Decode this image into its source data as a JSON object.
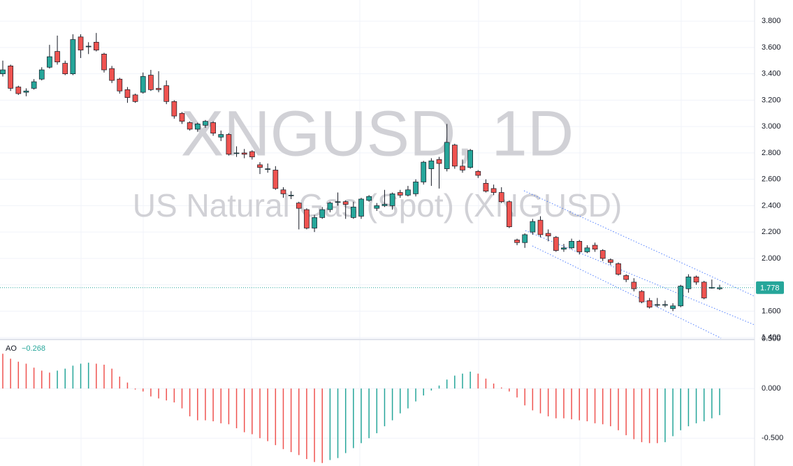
{
  "chart_data": [
    {
      "type": "candlestick",
      "title": "XNGUSD, 1D",
      "subtitle": "US Natural Gas (Spot) (XNGUSD)",
      "open": [
        3.4,
        3.46,
        3.3,
        3.26,
        3.29,
        3.36,
        3.45,
        3.57,
        3.48,
        3.4,
        3.68,
        3.61,
        3.64,
        3.55,
        3.44,
        3.36,
        3.28,
        3.24,
        3.26,
        3.39,
        3.29,
        3.31,
        3.19,
        3.1,
        3.03,
        2.98,
        3.01,
        3.03,
        2.92,
        2.94,
        2.8,
        2.8,
        2.81,
        2.71,
        2.68,
        2.67,
        2.52,
        2.48,
        2.42,
        2.37,
        2.23,
        2.31,
        2.37,
        2.43,
        2.43,
        2.31,
        2.32,
        2.44,
        2.38,
        2.4,
        2.4,
        2.5,
        2.48,
        2.49,
        2.58,
        2.68,
        2.75,
        2.68,
        2.86,
        2.7,
        2.69,
        2.66,
        2.57,
        2.53,
        2.5,
        2.43,
        2.14,
        2.12,
        2.2,
        2.29,
        2.19,
        2.16,
        2.07,
        2.08,
        2.13,
        2.05,
        2.1,
        2.06,
        1.99,
        1.96,
        1.87,
        1.82,
        1.75,
        1.68,
        1.65,
        1.65,
        1.62,
        1.64,
        1.77,
        1.86,
        1.82,
        1.78,
        1.77
      ],
      "high": [
        3.5,
        3.47,
        3.31,
        3.29,
        3.36,
        3.45,
        3.62,
        3.69,
        3.5,
        3.7,
        3.7,
        3.64,
        3.71,
        3.56,
        3.46,
        3.37,
        3.3,
        3.25,
        3.41,
        3.43,
        3.42,
        3.35,
        3.2,
        3.11,
        3.04,
        3.03,
        3.05,
        3.04,
        2.97,
        2.95,
        2.85,
        2.83,
        2.82,
        2.73,
        2.72,
        2.7,
        2.54,
        2.51,
        2.43,
        2.38,
        2.33,
        2.39,
        2.43,
        2.5,
        2.44,
        2.43,
        2.46,
        2.48,
        2.42,
        2.52,
        2.5,
        2.52,
        2.55,
        2.6,
        2.74,
        2.76,
        2.77,
        3.02,
        2.87,
        2.75,
        2.83,
        2.67,
        2.6,
        2.56,
        2.54,
        2.44,
        2.15,
        2.19,
        2.3,
        2.32,
        2.22,
        2.17,
        2.11,
        2.15,
        2.14,
        2.1,
        2.12,
        2.07,
        2.0,
        1.97,
        1.88,
        1.85,
        1.76,
        1.7,
        1.7,
        1.68,
        1.66,
        1.8,
        1.88,
        1.87,
        1.83,
        1.84,
        1.8
      ],
      "low": [
        3.38,
        3.27,
        3.24,
        3.23,
        3.28,
        3.35,
        3.44,
        3.47,
        3.39,
        3.39,
        3.52,
        3.55,
        3.57,
        3.41,
        3.33,
        3.25,
        3.18,
        3.18,
        3.25,
        3.27,
        3.26,
        3.17,
        3.06,
        3.02,
        2.97,
        2.96,
        2.99,
        2.93,
        2.89,
        2.78,
        2.77,
        2.76,
        2.75,
        2.64,
        2.65,
        2.52,
        2.46,
        2.45,
        2.22,
        2.22,
        2.2,
        2.3,
        2.35,
        2.4,
        2.3,
        2.3,
        2.3,
        2.43,
        2.36,
        2.39,
        2.37,
        2.46,
        2.47,
        2.47,
        2.56,
        2.55,
        2.53,
        2.66,
        2.68,
        2.65,
        2.68,
        2.61,
        2.5,
        2.48,
        2.42,
        2.23,
        2.1,
        2.08,
        2.18,
        2.16,
        2.13,
        2.05,
        2.05,
        2.07,
        2.03,
        2.04,
        2.05,
        1.98,
        1.95,
        1.87,
        1.82,
        1.75,
        1.66,
        1.62,
        1.63,
        1.63,
        1.6,
        1.63,
        1.74,
        1.8,
        1.69,
        1.77,
        1.76
      ],
      "close": [
        3.43,
        3.29,
        3.25,
        3.27,
        3.34,
        3.43,
        3.53,
        3.49,
        3.4,
        3.66,
        3.58,
        3.61,
        3.58,
        3.43,
        3.35,
        3.27,
        3.22,
        3.19,
        3.38,
        3.28,
        3.28,
        3.19,
        3.08,
        3.04,
        2.98,
        3.02,
        3.04,
        2.95,
        2.94,
        2.79,
        2.8,
        2.79,
        2.77,
        2.69,
        2.68,
        2.53,
        2.49,
        2.48,
        2.38,
        2.23,
        2.31,
        2.37,
        2.42,
        2.43,
        2.41,
        2.39,
        2.45,
        2.47,
        2.4,
        2.41,
        2.49,
        2.48,
        2.52,
        2.58,
        2.73,
        2.74,
        2.72,
        2.88,
        2.7,
        2.67,
        2.82,
        2.63,
        2.51,
        2.5,
        2.43,
        2.24,
        2.12,
        2.18,
        2.28,
        2.18,
        2.17,
        2.06,
        2.08,
        2.13,
        2.05,
        2.08,
        2.07,
        2.0,
        1.97,
        1.88,
        1.84,
        1.77,
        1.67,
        1.63,
        1.65,
        1.65,
        1.64,
        1.79,
        1.86,
        1.82,
        1.7,
        1.78,
        1.778
      ],
      "up_color": "#26a69a",
      "down_color": "#ef5350",
      "last_value": 1.778,
      "ylim": [
        1.39,
        3.96
      ],
      "yticks": [
        {
          "value": 1.4,
          "label": "1.400"
        },
        {
          "value": 1.6,
          "label": "1.600"
        },
        {
          "value": 1.8,
          "label": "1.800"
        },
        {
          "value": 2.0,
          "label": "2.000"
        },
        {
          "value": 2.2,
          "label": "2.200"
        },
        {
          "value": 2.4,
          "label": "2.400"
        },
        {
          "value": 2.6,
          "label": "2.600"
        },
        {
          "value": 2.8,
          "label": "2.800"
        },
        {
          "value": 3.0,
          "label": "3.000"
        },
        {
          "value": 3.2,
          "label": "3.200"
        },
        {
          "value": 3.4,
          "label": "3.400"
        },
        {
          "value": 3.6,
          "label": "3.600"
        },
        {
          "value": 3.8,
          "label": "3.800"
        }
      ],
      "grid": true
    },
    {
      "type": "histogram",
      "name": "AO",
      "values": [
        0.35,
        0.3,
        0.27,
        0.25,
        0.21,
        0.18,
        0.16,
        0.18,
        0.2,
        0.23,
        0.25,
        0.26,
        0.25,
        0.24,
        0.2,
        0.12,
        0.06,
        -0.01,
        -0.03,
        -0.08,
        -0.1,
        -0.12,
        -0.14,
        -0.2,
        -0.28,
        -0.32,
        -0.32,
        -0.33,
        -0.35,
        -0.36,
        -0.4,
        -0.44,
        -0.46,
        -0.5,
        -0.53,
        -0.57,
        -0.61,
        -0.64,
        -0.67,
        -0.71,
        -0.74,
        -0.75,
        -0.72,
        -0.7,
        -0.65,
        -0.6,
        -0.55,
        -0.5,
        -0.45,
        -0.38,
        -0.32,
        -0.25,
        -0.2,
        -0.13,
        -0.07,
        -0.02,
        0.03,
        0.09,
        0.13,
        0.15,
        0.17,
        0.15,
        0.1,
        0.05,
        0.01,
        -0.03,
        -0.09,
        -0.17,
        -0.22,
        -0.25,
        -0.28,
        -0.3,
        -0.3,
        -0.31,
        -0.32,
        -0.33,
        -0.35,
        -0.36,
        -0.38,
        -0.42,
        -0.47,
        -0.51,
        -0.54,
        -0.55,
        -0.55,
        -0.54,
        -0.48,
        -0.42,
        -0.38,
        -0.35,
        -0.33,
        -0.3,
        -0.268
      ],
      "legend_value": {
        "value": -0.268,
        "label": "−0.268"
      },
      "up_color": "#26a69a",
      "down_color": "#ef5350",
      "ylim": [
        -0.78,
        0.5
      ],
      "yticks": [
        {
          "value": -0.5,
          "label": "-0.500"
        },
        {
          "value": 0,
          "label": "0.000"
        },
        {
          "value": 0.5,
          "label": "0.500"
        }
      ],
      "grid": true
    }
  ]
}
